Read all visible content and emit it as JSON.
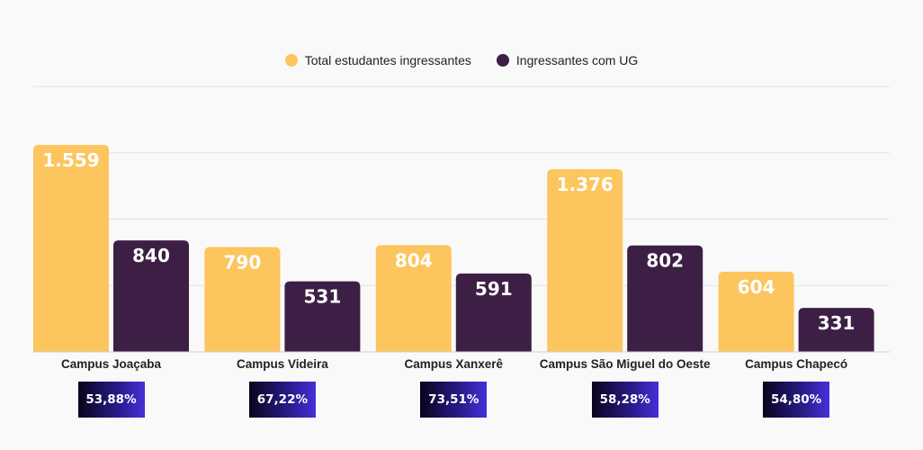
{
  "legend": {
    "total_label": "Total estudantes ingressantes",
    "ug_label": "Ingressantes com UG"
  },
  "colors": {
    "total": "#fdc55e",
    "ug": "#3d1f45",
    "grid": "#e4e4e6",
    "badge_start": "#07051c",
    "badge_end": "#4530d8"
  },
  "chart_data": {
    "type": "bar",
    "categories": [
      "Campus Joaçaba",
      "Campus Videira",
      "Campus Xanxerê",
      "Campus São Miguel do Oeste",
      "Campus Chapecó"
    ],
    "series": [
      {
        "name": "Total estudantes ingressantes",
        "values": [
          1559,
          790,
          804,
          1376,
          604
        ],
        "labels": [
          "1.559",
          "790",
          "804",
          "1.376",
          "604"
        ]
      },
      {
        "name": "Ingressantes com UG",
        "values": [
          840,
          531,
          591,
          802,
          331
        ],
        "labels": [
          "840",
          "531",
          "591",
          "802",
          "331"
        ]
      }
    ],
    "percentages": [
      "53,88%",
      "67,22%",
      "73,51%",
      "58,28%",
      "54,80%"
    ],
    "ylim": [
      0,
      2000
    ],
    "grid": true,
    "legend_position": "top-center"
  }
}
